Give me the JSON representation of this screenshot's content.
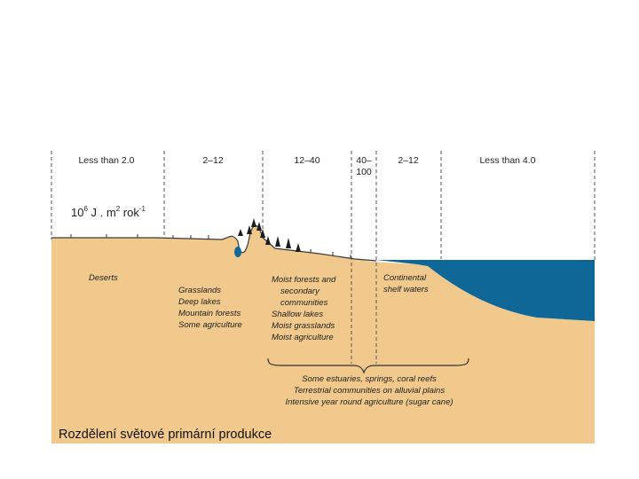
{
  "zones": [
    {
      "label": "Less than 2.0"
    },
    {
      "label": "2–12"
    },
    {
      "label": "12–40"
    },
    {
      "label_line1": "40–",
      "label_line2": "100"
    },
    {
      "label": "2–12"
    },
    {
      "label": "Less than 4.0"
    }
  ],
  "unit": {
    "base": "10",
    "exp1": "6",
    "mid": " J . m",
    "exp2": "2",
    "tail": " rok",
    "exp3": "-1"
  },
  "regions": {
    "deserts": [
      "Deserts"
    ],
    "grasslands": [
      "Grasslands",
      "Deep lakes",
      "Mountain forests",
      "Some agriculture"
    ],
    "moist": [
      "Moist forests and",
      "secondary",
      "communities",
      "Shallow lakes",
      "Moist grasslands",
      "Moist agriculture"
    ],
    "shelf": [
      "Continental",
      "shelf waters"
    ],
    "estuaries": [
      "Some estuaries, springs, coral reefs",
      "Terrestrial communities on alluvial plains",
      "Intensive year round agriculture (sugar cane)"
    ]
  },
  "caption": "Rozdělení světové primární produkce",
  "colors": {
    "land": "#f2c98c",
    "sea": "#0e6796",
    "divider": "#555555"
  }
}
